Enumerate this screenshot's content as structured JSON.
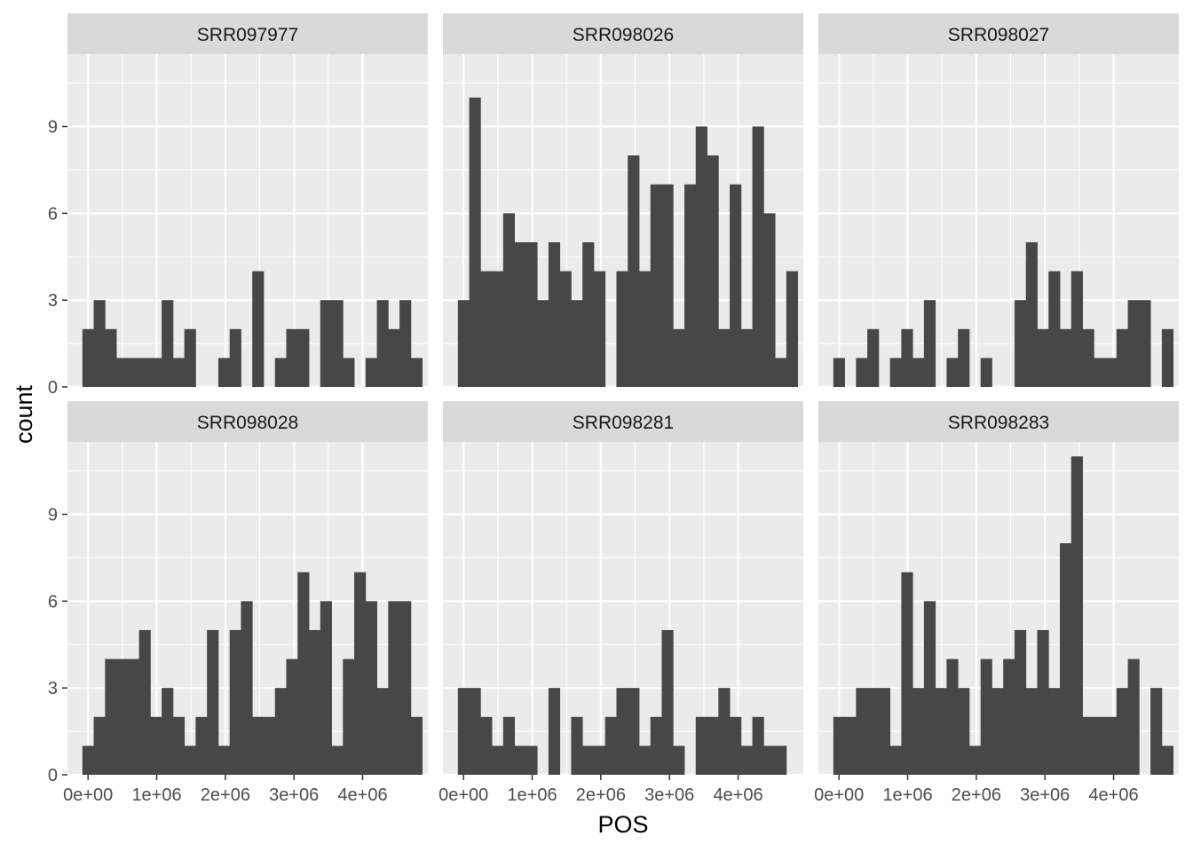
{
  "chart_data": {
    "type": "bar",
    "subtype": "faceted-histogram",
    "xlabel": "POS",
    "ylabel": "count",
    "bin_width": 165000,
    "first_bin_center": 0,
    "xlim": [
      -300000,
      4950000
    ],
    "ylim": [
      0,
      11.5
    ],
    "x_ticks": [
      0,
      1000000,
      2000000,
      3000000,
      4000000
    ],
    "x_tick_labels": [
      "0e+00",
      "1e+06",
      "2e+06",
      "3e+06",
      "4e+06"
    ],
    "y_ticks": [
      0,
      3,
      6,
      9
    ],
    "y_tick_labels": [
      "0",
      "3",
      "6",
      "9"
    ],
    "grid": true,
    "colors": {
      "bar": "#474747",
      "panel": "#ebebeb",
      "strip": "#d9d9d9",
      "grid": "#ffffff"
    },
    "facets": [
      {
        "name": "SRR097977",
        "counts": [
          2,
          3,
          2,
          1,
          1,
          1,
          1,
          3,
          1,
          2,
          0,
          0,
          1,
          2,
          0,
          4,
          0,
          1,
          2,
          2,
          0,
          3,
          3,
          1,
          0,
          1,
          3,
          2,
          3,
          1
        ]
      },
      {
        "name": "SRR098026",
        "counts": [
          3,
          10,
          4,
          4,
          6,
          5,
          5,
          3,
          5,
          4,
          3,
          5,
          4,
          0,
          4,
          8,
          4,
          7,
          7,
          2,
          7,
          9,
          8,
          2,
          7,
          2,
          9,
          6,
          1,
          4
        ]
      },
      {
        "name": "SRR098027",
        "counts": [
          1,
          0,
          1,
          2,
          0,
          1,
          2,
          1,
          3,
          0,
          1,
          2,
          0,
          1,
          0,
          0,
          3,
          5,
          2,
          4,
          2,
          4,
          2,
          1,
          1,
          2,
          3,
          3,
          0,
          2
        ]
      },
      {
        "name": "SRR098028",
        "counts": [
          1,
          2,
          4,
          4,
          4,
          5,
          2,
          3,
          2,
          1,
          2,
          5,
          1,
          5,
          6,
          2,
          2,
          3,
          4,
          7,
          5,
          6,
          1,
          4,
          7,
          6,
          3,
          6,
          6,
          2
        ]
      },
      {
        "name": "SRR098281",
        "counts": [
          3,
          3,
          2,
          1,
          2,
          1,
          1,
          0,
          3,
          0,
          2,
          1,
          1,
          2,
          3,
          3,
          1,
          2,
          5,
          1,
          0,
          2,
          2,
          3,
          2,
          1,
          2,
          1,
          1,
          0
        ]
      },
      {
        "name": "SRR098283",
        "counts": [
          2,
          2,
          3,
          3,
          3,
          1,
          7,
          3,
          6,
          3,
          4,
          3,
          1,
          4,
          3,
          4,
          5,
          3,
          5,
          3,
          8,
          11,
          2,
          2,
          2,
          3,
          4,
          0,
          3,
          1
        ]
      }
    ]
  }
}
